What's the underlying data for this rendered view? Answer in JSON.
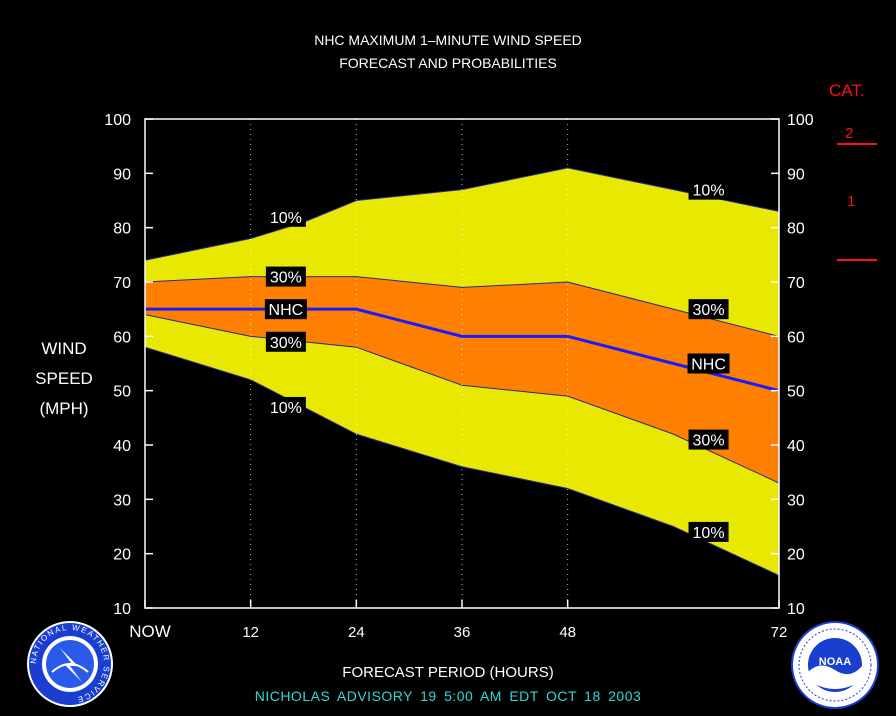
{
  "header": {
    "title_line1": "NHC MAXIMUM 1–MINUTE WIND SPEED",
    "title_line2": "FORECAST AND PROBABILITIES"
  },
  "ylabel_lines": [
    "WIND",
    "SPEED",
    "(MPH)"
  ],
  "xlabel": "FORECAST PERIOD (HOURS)",
  "advisory": "NICHOLAS   ADVISORY  19  5:00  AM  EDT  OCT  18  2003",
  "category": {
    "title": "CAT.",
    "labels": [
      "2",
      "1"
    ],
    "thresholds_mph": [
      96,
      74
    ],
    "color": "#ff1010"
  },
  "logos": {
    "left": {
      "name": "nws-logo",
      "text": "NATIONAL WEATHER SERVICE"
    },
    "right": {
      "name": "noaa-logo",
      "text": "NOAA"
    }
  },
  "colors": {
    "outer_band": "#e8e800",
    "inner_band": "#ff8000",
    "nhc_line": "#1a1aff",
    "band_edge": "#2a2a9a",
    "axis_text": "#ffffff",
    "advisory_text": "#2fd8d8"
  },
  "chart_data": {
    "type": "area",
    "x": [
      0,
      6,
      12,
      18,
      24,
      36,
      48,
      60,
      72
    ],
    "x_ticks": [
      0,
      12,
      24,
      36,
      48,
      72
    ],
    "x_tick_labels": [
      "NOW",
      "12",
      "24",
      "36",
      "48",
      "72"
    ],
    "xlim": [
      0,
      72
    ],
    "ylim": [
      10,
      100
    ],
    "y_ticks": [
      10,
      20,
      30,
      40,
      50,
      60,
      70,
      80,
      90,
      100
    ],
    "grid_x": [
      12,
      24,
      36,
      48
    ],
    "series": [
      {
        "name": "10%",
        "values": [
          74,
          76,
          78,
          81,
          85,
          87,
          91,
          87,
          83
        ]
      },
      {
        "name": "30%",
        "values": [
          70,
          70.5,
          71,
          71,
          71,
          69,
          70,
          65,
          60
        ]
      },
      {
        "name": "NHC",
        "values": [
          65,
          65,
          65,
          65,
          65,
          60,
          60,
          55,
          50
        ]
      },
      {
        "name": "30%",
        "values": [
          64,
          62,
          60,
          59,
          58,
          51,
          49,
          42,
          33
        ]
      },
      {
        "name": "10%",
        "values": [
          58,
          55,
          52,
          47,
          42,
          36,
          32,
          25,
          16
        ]
      }
    ],
    "band_labels": [
      {
        "text": "10%",
        "x": 16,
        "y": 82
      },
      {
        "text": "30%",
        "x": 16,
        "y": 71
      },
      {
        "text": "NHC",
        "x": 16,
        "y": 65
      },
      {
        "text": "30%",
        "x": 16,
        "y": 59
      },
      {
        "text": "10%",
        "x": 16,
        "y": 47
      },
      {
        "text": "10%",
        "x": 64,
        "y": 87
      },
      {
        "text": "30%",
        "x": 64,
        "y": 65
      },
      {
        "text": "NHC",
        "x": 64,
        "y": 55
      },
      {
        "text": "30%",
        "x": 64,
        "y": 41
      },
      {
        "text": "10%",
        "x": 64,
        "y": 24
      }
    ]
  }
}
